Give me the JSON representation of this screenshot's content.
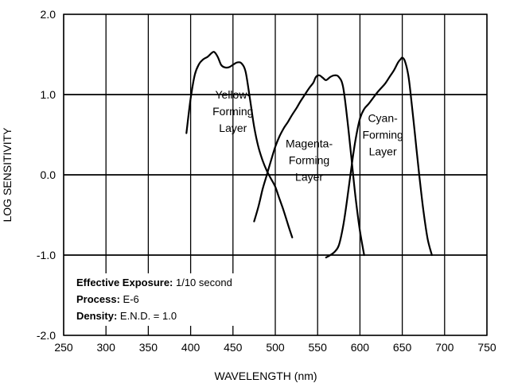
{
  "chart_data": {
    "type": "line",
    "xlabel": "WAVELENGTH (nm)",
    "ylabel": "LOG SENSITIVITY",
    "xlim": [
      250,
      750
    ],
    "ylim": [
      -2.0,
      2.0
    ],
    "grid": true,
    "x_ticks": [
      "250",
      "300",
      "350",
      "400",
      "450",
      "500",
      "550",
      "600",
      "650",
      "700",
      "750"
    ],
    "y_ticks": [
      "2.0",
      "1.0",
      "0.0",
      "-1.0",
      "-2.0"
    ],
    "series": [
      {
        "name": "Yellow-Forming Layer",
        "label_lines": [
          "Yellow-",
          "Forming",
          "Layer"
        ],
        "x": [
          395,
          400,
          405,
          410,
          415,
          420,
          425,
          428,
          432,
          436,
          440,
          445,
          450,
          455,
          460,
          465,
          470,
          475,
          480,
          485,
          490,
          495,
          500,
          505,
          510,
          515,
          520
        ],
        "y": [
          0.52,
          0.95,
          1.25,
          1.38,
          1.44,
          1.47,
          1.52,
          1.53,
          1.47,
          1.37,
          1.34,
          1.34,
          1.37,
          1.4,
          1.39,
          1.28,
          0.95,
          0.6,
          0.35,
          0.18,
          0.05,
          -0.05,
          -0.15,
          -0.3,
          -0.45,
          -0.62,
          -0.78
        ]
      },
      {
        "name": "Magenta-Forming Layer",
        "label_lines": [
          "Magenta-",
          "Forming",
          "Layer"
        ],
        "x": [
          475,
          480,
          485,
          490,
          495,
          500,
          505,
          510,
          515,
          520,
          525,
          530,
          535,
          540,
          545,
          548,
          552,
          556,
          560,
          565,
          570,
          575,
          580,
          585,
          590,
          595,
          600,
          605
        ],
        "y": [
          -0.58,
          -0.4,
          -0.18,
          0.0,
          0.18,
          0.35,
          0.48,
          0.58,
          0.66,
          0.75,
          0.83,
          0.92,
          1.0,
          1.08,
          1.15,
          1.22,
          1.24,
          1.21,
          1.18,
          1.22,
          1.24,
          1.22,
          1.1,
          0.7,
          0.2,
          -0.3,
          -0.7,
          -1.0
        ]
      },
      {
        "name": "Cyan-Forming Layer",
        "label_lines": [
          "Cyan-",
          "Forming",
          "Layer"
        ],
        "x": [
          560,
          565,
          570,
          575,
          580,
          585,
          590,
          595,
          600,
          605,
          610,
          615,
          620,
          625,
          630,
          635,
          640,
          645,
          648,
          650,
          653,
          657,
          660,
          665,
          670,
          675,
          680,
          685
        ],
        "y": [
          -1.03,
          -1.0,
          -0.96,
          -0.88,
          -0.65,
          -0.3,
          0.1,
          0.45,
          0.7,
          0.82,
          0.88,
          0.95,
          1.02,
          1.08,
          1.14,
          1.22,
          1.3,
          1.4,
          1.44,
          1.46,
          1.42,
          1.25,
          1.0,
          0.5,
          0.0,
          -0.45,
          -0.8,
          -1.0
        ]
      }
    ],
    "annotations": [
      {
        "bold": "Effective Exposure:",
        "text": " 1/10 second"
      },
      {
        "bold": "Process:",
        "text": " E-6"
      },
      {
        "bold": "Density:",
        "text": " E.N.D. = 1.0"
      }
    ]
  }
}
